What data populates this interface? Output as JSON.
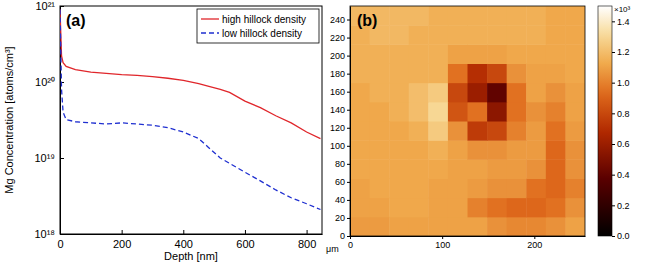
{
  "chart_data": [
    {
      "type": "line",
      "panel_label": "(a)",
      "x_label": "Depth [nm]",
      "y_label": "Mg Concentration [atoms/cm³]",
      "log": "y",
      "legend": "upper right",
      "x": [
        0,
        5,
        10,
        20,
        50,
        100,
        150,
        200,
        250,
        300,
        350,
        400,
        450,
        480,
        520,
        550,
        600,
        650,
        700,
        750,
        800,
        845
      ],
      "xlim": [
        0,
        850
      ],
      "xticks": [
        0,
        200,
        400,
        600,
        800
      ],
      "ylim": [
        1e+18,
        1e+21
      ],
      "yticks": [
        {
          "value": 1e+18,
          "label": "10¹⁸"
        },
        {
          "value": 1e+19,
          "label": "10¹⁹"
        },
        {
          "value": 1e+20,
          "label": "10²⁰"
        },
        {
          "value": 1e+21,
          "label": "10²¹"
        }
      ],
      "series": [
        {
          "name": "high hillock density",
          "color": "#e0262b",
          "line_style": "solid",
          "values": [
            9e+20,
            2.2e+20,
            1.8e+20,
            1.6e+20,
            1.45e+20,
            1.35e+20,
            1.3e+20,
            1.25e+20,
            1.22e+20,
            1.18e+20,
            1.12e+20,
            1.05e+20,
            9.5e+19,
            8.8e+19,
            8e+19,
            7.3e+19,
            5.6e+19,
            4.6e+19,
            3.6e+19,
            2.9e+19,
            2.2e+19,
            1.8e+19
          ]
        },
        {
          "name": "low hillock density",
          "color": "#1f2fd0",
          "line_style": "dashed",
          "values": [
            9e+20,
            8e+19,
            4e+19,
            3.2e+19,
            3e+19,
            2.9e+19,
            2.8e+19,
            2.9e+19,
            2.8e+19,
            2.7e+19,
            2.5e+19,
            2.2e+19,
            1.8e+19,
            1.4e+19,
            1e+19,
            8.5e+18,
            6.5e+18,
            5e+18,
            3.8e+18,
            3e+18,
            2.5e+18,
            2.1e+18
          ]
        }
      ]
    },
    {
      "type": "heatmap",
      "panel_label": "(b)",
      "x_label": "μm",
      "xlim": [
        0,
        255
      ],
      "xticks": [
        0,
        100,
        200
      ],
      "ylim": [
        0,
        255
      ],
      "yticks": [
        0,
        20,
        40,
        60,
        80,
        100,
        120,
        140,
        160,
        180,
        200,
        220,
        240
      ],
      "x_bins": [
        0,
        21.25,
        42.5,
        63.75,
        85,
        106.25,
        127.5,
        148.75,
        170,
        191.25,
        212.5,
        233.75,
        255
      ],
      "y_bins": [
        0,
        21.25,
        42.5,
        63.75,
        85,
        106.25,
        127.5,
        148.75,
        170,
        191.25,
        212.5,
        233.75,
        255
      ],
      "cells": [
        [
          1.08,
          1.08,
          1.1,
          1.1,
          1.1,
          1.1,
          1.1,
          1.05,
          1.02,
          1.02,
          1.05,
          1.1
        ],
        [
          1.1,
          1.1,
          1.12,
          1.12,
          1.1,
          1.1,
          1.0,
          0.95,
          0.92,
          0.92,
          0.95,
          1.05
        ],
        [
          1.1,
          1.12,
          1.12,
          1.12,
          1.1,
          1.1,
          1.08,
          1.05,
          1.05,
          0.95,
          0.92,
          1.0
        ],
        [
          1.12,
          1.12,
          1.12,
          1.12,
          1.12,
          1.1,
          1.1,
          1.08,
          1.08,
          1.05,
          0.92,
          1.05
        ],
        [
          1.12,
          1.12,
          1.12,
          1.12,
          1.15,
          1.1,
          1.05,
          1.05,
          1.08,
          1.08,
          0.92,
          1.05
        ],
        [
          1.12,
          1.12,
          1.12,
          1.15,
          1.25,
          1.05,
          0.75,
          0.8,
          1.0,
          1.08,
          0.95,
          1.08
        ],
        [
          1.12,
          1.12,
          1.15,
          1.2,
          1.3,
          0.85,
          0.95,
          0.55,
          0.95,
          1.05,
          1.0,
          1.1
        ],
        [
          1.12,
          1.15,
          1.15,
          1.2,
          1.25,
          0.8,
          0.6,
          0.4,
          0.95,
          1.1,
          1.05,
          1.1
        ],
        [
          1.15,
          1.15,
          1.15,
          1.15,
          1.15,
          0.95,
          0.7,
          0.8,
          1.05,
          1.1,
          1.1,
          1.12
        ],
        [
          1.15,
          1.15,
          1.15,
          1.15,
          1.15,
          1.1,
          1.1,
          1.1,
          1.12,
          1.12,
          1.12,
          1.12
        ],
        [
          1.15,
          1.18,
          1.18,
          1.15,
          1.15,
          1.15,
          1.15,
          1.15,
          1.15,
          1.15,
          1.12,
          1.12
        ],
        [
          1.18,
          1.18,
          1.18,
          1.18,
          1.15,
          1.15,
          1.15,
          1.15,
          1.15,
          1.15,
          1.12,
          1.12
        ]
      ],
      "colorbar": {
        "range": [
          0,
          1.5
        ],
        "ticks": [
          {
            "value": 0,
            "label": "0.0"
          },
          0.2,
          0.4,
          0.6,
          0.8,
          {
            "value": 1,
            "label": "1.0"
          },
          1.2,
          1.4
        ],
        "label": "×10³"
      }
    }
  ]
}
